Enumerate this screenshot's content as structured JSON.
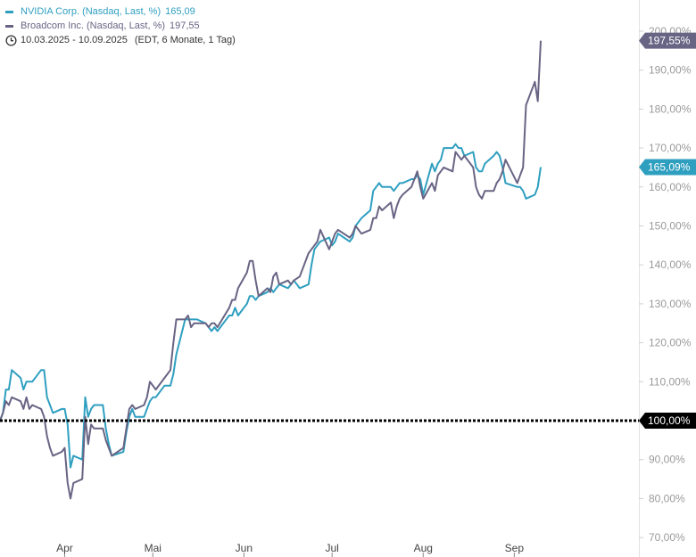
{
  "legend": {
    "series1": {
      "name": "NVIDIA Corp. (Nasdaq, Last, %)",
      "value": "165,09"
    },
    "series2": {
      "name": "Broadcom Inc. (Nasdaq, Last, %)",
      "value": "197,55"
    },
    "range": "10.03.2025 - 10.09.2025",
    "range_detail": "(EDT, 6 Monate, 1 Tag)"
  },
  "colors": {
    "nvidia": "#2f9fc0",
    "broadcom": "#686484",
    "baseline": "#000000"
  },
  "icons": {
    "clock": "clock-icon"
  },
  "chart_data": {
    "type": "line",
    "ylim": [
      65,
      208
    ],
    "yticks": [
      {
        "value": 70,
        "label": "70,00%"
      },
      {
        "value": 80,
        "label": "80,00%"
      },
      {
        "value": 90,
        "label": "90,00%"
      },
      {
        "value": 110,
        "label": "110,00%"
      },
      {
        "value": 120,
        "label": "120,00%"
      },
      {
        "value": 130,
        "label": "130,00%"
      },
      {
        "value": 140,
        "label": "140,00%"
      },
      {
        "value": 150,
        "label": "150,00%"
      },
      {
        "value": 160,
        "label": "160,00%"
      },
      {
        "value": 170,
        "label": "170,00%"
      },
      {
        "value": 180,
        "label": "180,00%"
      },
      {
        "value": 190,
        "label": "190,00%"
      },
      {
        "value": 200,
        "label": "200,00%"
      }
    ],
    "xlim": [
      "2025-03-10",
      "2025-09-10"
    ],
    "xticks": [
      {
        "date": "2025-04-01",
        "label": "Apr"
      },
      {
        "date": "2025-05-01",
        "label": "Mai"
      },
      {
        "date": "2025-06-01",
        "label": "Jun"
      },
      {
        "date": "2025-07-01",
        "label": "Jul"
      },
      {
        "date": "2025-08-01",
        "label": "Aug"
      },
      {
        "date": "2025-09-01",
        "label": "Sep"
      }
    ],
    "baseline": {
      "value": 100,
      "label": "100,00%"
    },
    "series": [
      {
        "name": "NVIDIA Corp. (Nasdaq, Last, %)",
        "color": "#2f9fc0",
        "last_label": "165,09%",
        "points": [
          [
            "2025-03-10",
            100
          ],
          [
            "2025-03-11",
            102
          ],
          [
            "2025-03-12",
            108
          ],
          [
            "2025-03-13",
            108
          ],
          [
            "2025-03-14",
            113
          ],
          [
            "2025-03-17",
            111
          ],
          [
            "2025-03-18",
            108
          ],
          [
            "2025-03-19",
            110
          ],
          [
            "2025-03-20",
            110
          ],
          [
            "2025-03-21",
            110
          ],
          [
            "2025-03-24",
            113
          ],
          [
            "2025-03-25",
            113
          ],
          [
            "2025-03-26",
            106
          ],
          [
            "2025-03-27",
            104
          ],
          [
            "2025-03-28",
            102
          ],
          [
            "2025-03-31",
            103
          ],
          [
            "2025-04-01",
            103
          ],
          [
            "2025-04-02",
            99
          ],
          [
            "2025-04-03",
            88
          ],
          [
            "2025-04-04",
            91
          ],
          [
            "2025-04-07",
            90
          ],
          [
            "2025-04-08",
            106
          ],
          [
            "2025-04-09",
            101
          ],
          [
            "2025-04-10",
            103
          ],
          [
            "2025-04-11",
            104
          ],
          [
            "2025-04-14",
            104
          ],
          [
            "2025-04-15",
            98
          ],
          [
            "2025-04-16",
            94
          ],
          [
            "2025-04-17",
            91
          ],
          [
            "2025-04-21",
            92
          ],
          [
            "2025-04-22",
            97
          ],
          [
            "2025-04-23",
            101
          ],
          [
            "2025-04-24",
            103
          ],
          [
            "2025-04-25",
            101
          ],
          [
            "2025-04-28",
            101
          ],
          [
            "2025-04-29",
            103
          ],
          [
            "2025-04-30",
            105
          ],
          [
            "2025-05-01",
            106
          ],
          [
            "2025-05-02",
            106
          ],
          [
            "2025-05-05",
            109
          ],
          [
            "2025-05-06",
            109
          ],
          [
            "2025-05-07",
            109
          ],
          [
            "2025-05-08",
            112
          ],
          [
            "2025-05-09",
            117
          ],
          [
            "2025-05-12",
            126
          ],
          [
            "2025-05-13",
            126
          ],
          [
            "2025-05-14",
            126
          ],
          [
            "2025-05-15",
            126
          ],
          [
            "2025-05-16",
            126
          ],
          [
            "2025-05-19",
            125
          ],
          [
            "2025-05-20",
            124
          ],
          [
            "2025-05-21",
            123
          ],
          [
            "2025-05-22",
            124
          ],
          [
            "2025-05-23",
            123
          ],
          [
            "2025-05-27",
            127
          ],
          [
            "2025-05-28",
            127
          ],
          [
            "2025-05-29",
            129
          ],
          [
            "2025-05-30",
            127
          ],
          [
            "2025-06-02",
            130
          ],
          [
            "2025-06-03",
            132
          ],
          [
            "2025-06-04",
            132
          ],
          [
            "2025-06-05",
            131
          ],
          [
            "2025-06-06",
            132
          ],
          [
            "2025-06-09",
            133
          ],
          [
            "2025-06-10",
            134
          ],
          [
            "2025-06-11",
            133
          ],
          [
            "2025-06-12",
            134
          ],
          [
            "2025-06-13",
            135
          ],
          [
            "2025-06-16",
            134
          ],
          [
            "2025-06-17",
            135
          ],
          [
            "2025-06-18",
            136
          ],
          [
            "2025-06-20",
            134
          ],
          [
            "2025-06-23",
            135
          ],
          [
            "2025-06-24",
            140
          ],
          [
            "2025-06-25",
            144
          ],
          [
            "2025-06-26",
            145
          ],
          [
            "2025-06-27",
            146
          ],
          [
            "2025-06-30",
            147
          ],
          [
            "2025-07-01",
            145
          ],
          [
            "2025-07-02",
            146
          ],
          [
            "2025-07-03",
            148
          ],
          [
            "2025-07-07",
            146
          ],
          [
            "2025-07-08",
            147
          ],
          [
            "2025-07-09",
            150
          ],
          [
            "2025-07-10",
            151
          ],
          [
            "2025-07-11",
            152
          ],
          [
            "2025-07-14",
            154
          ],
          [
            "2025-07-15",
            159
          ],
          [
            "2025-07-16",
            160
          ],
          [
            "2025-07-17",
            161
          ],
          [
            "2025-07-18",
            160
          ],
          [
            "2025-07-21",
            160
          ],
          [
            "2025-07-22",
            159
          ],
          [
            "2025-07-23",
            160
          ],
          [
            "2025-07-24",
            161
          ],
          [
            "2025-07-25",
            161
          ],
          [
            "2025-07-28",
            162
          ],
          [
            "2025-07-29",
            162
          ],
          [
            "2025-07-30",
            163
          ],
          [
            "2025-07-31",
            162
          ],
          [
            "2025-08-01",
            158
          ],
          [
            "2025-08-04",
            166
          ],
          [
            "2025-08-05",
            164
          ],
          [
            "2025-08-06",
            166
          ],
          [
            "2025-08-07",
            167
          ],
          [
            "2025-08-08",
            170
          ],
          [
            "2025-08-11",
            170
          ],
          [
            "2025-08-12",
            171
          ],
          [
            "2025-08-13",
            170
          ],
          [
            "2025-08-14",
            170
          ],
          [
            "2025-08-15",
            168
          ],
          [
            "2025-08-18",
            169
          ],
          [
            "2025-08-19",
            165
          ],
          [
            "2025-08-20",
            164
          ],
          [
            "2025-08-21",
            164
          ],
          [
            "2025-08-22",
            166
          ],
          [
            "2025-08-25",
            168
          ],
          [
            "2025-08-26",
            169
          ],
          [
            "2025-08-27",
            168
          ],
          [
            "2025-08-28",
            165
          ],
          [
            "2025-08-29",
            161
          ],
          [
            "2025-09-02",
            160
          ],
          [
            "2025-09-03",
            160
          ],
          [
            "2025-09-04",
            159
          ],
          [
            "2025-09-05",
            157
          ],
          [
            "2025-09-08",
            158
          ],
          [
            "2025-09-09",
            160
          ],
          [
            "2025-09-10",
            165.09
          ]
        ]
      },
      {
        "name": "Broadcom Inc. (Nasdaq, Last, %)",
        "color": "#686484",
        "last_label": "197,55%",
        "points": [
          [
            "2025-03-10",
            100
          ],
          [
            "2025-03-11",
            102
          ],
          [
            "2025-03-12",
            105
          ],
          [
            "2025-03-13",
            104
          ],
          [
            "2025-03-14",
            106
          ],
          [
            "2025-03-17",
            105
          ],
          [
            "2025-03-18",
            103
          ],
          [
            "2025-03-19",
            106
          ],
          [
            "2025-03-20",
            103
          ],
          [
            "2025-03-21",
            104
          ],
          [
            "2025-03-24",
            103
          ],
          [
            "2025-03-25",
            101
          ],
          [
            "2025-03-26",
            96
          ],
          [
            "2025-03-27",
            93
          ],
          [
            "2025-03-28",
            91
          ],
          [
            "2025-03-31",
            92
          ],
          [
            "2025-04-01",
            93
          ],
          [
            "2025-04-02",
            84
          ],
          [
            "2025-04-03",
            80
          ],
          [
            "2025-04-04",
            84
          ],
          [
            "2025-04-07",
            85
          ],
          [
            "2025-04-08",
            101
          ],
          [
            "2025-04-09",
            94
          ],
          [
            "2025-04-10",
            99
          ],
          [
            "2025-04-11",
            98
          ],
          [
            "2025-04-14",
            98
          ],
          [
            "2025-04-15",
            95
          ],
          [
            "2025-04-16",
            93
          ],
          [
            "2025-04-17",
            91
          ],
          [
            "2025-04-21",
            93
          ],
          [
            "2025-04-22",
            98
          ],
          [
            "2025-04-23",
            103
          ],
          [
            "2025-04-24",
            104
          ],
          [
            "2025-04-25",
            103
          ],
          [
            "2025-04-28",
            104
          ],
          [
            "2025-04-29",
            106
          ],
          [
            "2025-04-30",
            110
          ],
          [
            "2025-05-01",
            109
          ],
          [
            "2025-05-02",
            108
          ],
          [
            "2025-05-05",
            111
          ],
          [
            "2025-05-06",
            112
          ],
          [
            "2025-05-07",
            113
          ],
          [
            "2025-05-08",
            120
          ],
          [
            "2025-05-09",
            126
          ],
          [
            "2025-05-12",
            126
          ],
          [
            "2025-05-13",
            127
          ],
          [
            "2025-05-14",
            124
          ],
          [
            "2025-05-15",
            125
          ],
          [
            "2025-05-16",
            125
          ],
          [
            "2025-05-19",
            125
          ],
          [
            "2025-05-20",
            124
          ],
          [
            "2025-05-21",
            125
          ],
          [
            "2025-05-22",
            125
          ],
          [
            "2025-05-23",
            124
          ],
          [
            "2025-05-27",
            129
          ],
          [
            "2025-05-28",
            131
          ],
          [
            "2025-05-29",
            131
          ],
          [
            "2025-05-30",
            134
          ],
          [
            "2025-06-02",
            138
          ],
          [
            "2025-06-03",
            141
          ],
          [
            "2025-06-04",
            141
          ],
          [
            "2025-06-05",
            136
          ],
          [
            "2025-06-06",
            132
          ],
          [
            "2025-06-09",
            134
          ],
          [
            "2025-06-10",
            133
          ],
          [
            "2025-06-11",
            137
          ],
          [
            "2025-06-12",
            138
          ],
          [
            "2025-06-13",
            135
          ],
          [
            "2025-06-16",
            136
          ],
          [
            "2025-06-17",
            135
          ],
          [
            "2025-06-18",
            136
          ],
          [
            "2025-06-20",
            137
          ],
          [
            "2025-06-23",
            143
          ],
          [
            "2025-06-24",
            144
          ],
          [
            "2025-06-25",
            145
          ],
          [
            "2025-06-26",
            146
          ],
          [
            "2025-06-27",
            149
          ],
          [
            "2025-06-30",
            144
          ],
          [
            "2025-07-01",
            146
          ],
          [
            "2025-07-02",
            148
          ],
          [
            "2025-07-03",
            149
          ],
          [
            "2025-07-07",
            147
          ],
          [
            "2025-07-08",
            148
          ],
          [
            "2025-07-09",
            150
          ],
          [
            "2025-07-10",
            149
          ],
          [
            "2025-07-11",
            148
          ],
          [
            "2025-07-14",
            149
          ],
          [
            "2025-07-15",
            152
          ],
          [
            "2025-07-16",
            152
          ],
          [
            "2025-07-17",
            155
          ],
          [
            "2025-07-18",
            154
          ],
          [
            "2025-07-21",
            156
          ],
          [
            "2025-07-22",
            152
          ],
          [
            "2025-07-23",
            155
          ],
          [
            "2025-07-24",
            157
          ],
          [
            "2025-07-25",
            158
          ],
          [
            "2025-07-28",
            160
          ],
          [
            "2025-07-29",
            162
          ],
          [
            "2025-07-30",
            164
          ],
          [
            "2025-07-31",
            160
          ],
          [
            "2025-08-01",
            157
          ],
          [
            "2025-08-04",
            161
          ],
          [
            "2025-08-05",
            159
          ],
          [
            "2025-08-06",
            163
          ],
          [
            "2025-08-07",
            164
          ],
          [
            "2025-08-08",
            165
          ],
          [
            "2025-08-11",
            164
          ],
          [
            "2025-08-12",
            169
          ],
          [
            "2025-08-13",
            168
          ],
          [
            "2025-08-14",
            167
          ],
          [
            "2025-08-15",
            168
          ],
          [
            "2025-08-18",
            165
          ],
          [
            "2025-08-19",
            160
          ],
          [
            "2025-08-20",
            158
          ],
          [
            "2025-08-21",
            157
          ],
          [
            "2025-08-22",
            159
          ],
          [
            "2025-08-25",
            159
          ],
          [
            "2025-08-26",
            161
          ],
          [
            "2025-08-27",
            162
          ],
          [
            "2025-08-28",
            164
          ],
          [
            "2025-08-29",
            167
          ],
          [
            "2025-09-02",
            161
          ],
          [
            "2025-09-03",
            163
          ],
          [
            "2025-09-04",
            165
          ],
          [
            "2025-09-05",
            181
          ],
          [
            "2025-09-08",
            187
          ],
          [
            "2025-09-09",
            182
          ],
          [
            "2025-09-10",
            197.55
          ]
        ]
      }
    ]
  }
}
